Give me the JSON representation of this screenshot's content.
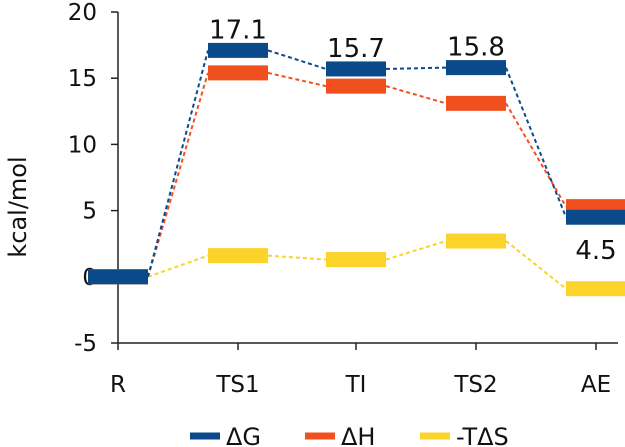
{
  "chart_data": {
    "type": "line",
    "ylabel": "kcal/mol",
    "xlabel": "",
    "ylim": [
      -5,
      20
    ],
    "yticks": [
      -5,
      0,
      5,
      10,
      15,
      20
    ],
    "categories": [
      "R",
      "TS1",
      "TI",
      "TS2",
      "AE"
    ],
    "grid": false,
    "legend_position": "bottom-center",
    "series": [
      {
        "name": "ΔG",
        "color": "#0b4a8a",
        "values": [
          0.0,
          17.1,
          15.7,
          15.8,
          4.5
        ]
      },
      {
        "name": "ΔH",
        "color": "#f0501e",
        "values": [
          0.0,
          15.4,
          14.4,
          13.1,
          5.3
        ]
      },
      {
        "name": "-TΔS",
        "color": "#fbd32a",
        "values": [
          0.0,
          1.6,
          1.3,
          2.7,
          -0.9
        ]
      }
    ],
    "data_labels": [
      {
        "series": 0,
        "index": 1,
        "text": "17.1",
        "placement": "above"
      },
      {
        "series": 0,
        "index": 2,
        "text": "15.7",
        "placement": "above"
      },
      {
        "series": 0,
        "index": 3,
        "text": "15.8",
        "placement": "above"
      },
      {
        "series": 0,
        "index": 4,
        "text": "4.5",
        "placement": "below"
      }
    ]
  }
}
